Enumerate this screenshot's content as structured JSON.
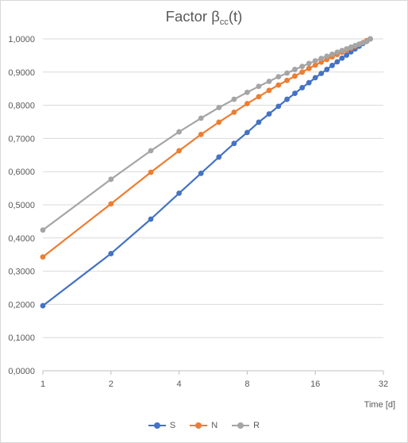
{
  "chart_data": {
    "type": "line",
    "title_main": "Factor β",
    "title_sub": "cc",
    "title_tail": "(t)",
    "xlabel": "Time [d]",
    "ylabel": "",
    "x_scale": "log2",
    "xlim": [
      1,
      32
    ],
    "ylim": [
      0,
      1
    ],
    "x_ticks": [
      "1",
      "2",
      "4",
      "8",
      "16",
      "32"
    ],
    "y_ticks": [
      "0,0000",
      "0,1000",
      "0,2000",
      "0,3000",
      "0,4000",
      "0,5000",
      "0,6000",
      "0,7000",
      "0,8000",
      "0,9000",
      "1,0000"
    ],
    "grid": "horizontal",
    "legend_position": "bottom",
    "x": [
      1,
      2,
      3,
      4,
      5,
      6,
      7,
      8,
      9,
      10,
      11,
      12,
      13,
      14,
      15,
      16,
      17,
      18,
      19,
      20,
      21,
      22,
      23,
      24,
      25,
      26,
      27,
      28
    ],
    "series": [
      {
        "name": "S",
        "color": "#4472c4",
        "values": [
          0.196,
          0.353,
          0.457,
          0.535,
          0.595,
          0.644,
          0.685,
          0.718,
          0.749,
          0.774,
          0.797,
          0.818,
          0.836,
          0.853,
          0.868,
          0.883,
          0.896,
          0.908,
          0.92,
          0.931,
          0.942,
          0.951,
          0.961,
          0.97,
          0.978,
          0.986,
          0.993,
          1.0
        ]
      },
      {
        "name": "N",
        "color": "#ed7d31",
        "values": [
          0.343,
          0.503,
          0.598,
          0.663,
          0.712,
          0.749,
          0.779,
          0.805,
          0.826,
          0.845,
          0.861,
          0.875,
          0.888,
          0.9,
          0.911,
          0.921,
          0.93,
          0.938,
          0.946,
          0.953,
          0.96,
          0.966,
          0.972,
          0.978,
          0.984,
          0.989,
          0.995,
          1.0
        ]
      },
      {
        "name": "R",
        "color": "#a5a5a5",
        "values": [
          0.424,
          0.577,
          0.663,
          0.72,
          0.761,
          0.793,
          0.818,
          0.839,
          0.857,
          0.872,
          0.886,
          0.897,
          0.908,
          0.917,
          0.926,
          0.934,
          0.941,
          0.948,
          0.954,
          0.96,
          0.965,
          0.97,
          0.975,
          0.98,
          0.984,
          0.988,
          0.992,
          1.0
        ]
      }
    ]
  }
}
